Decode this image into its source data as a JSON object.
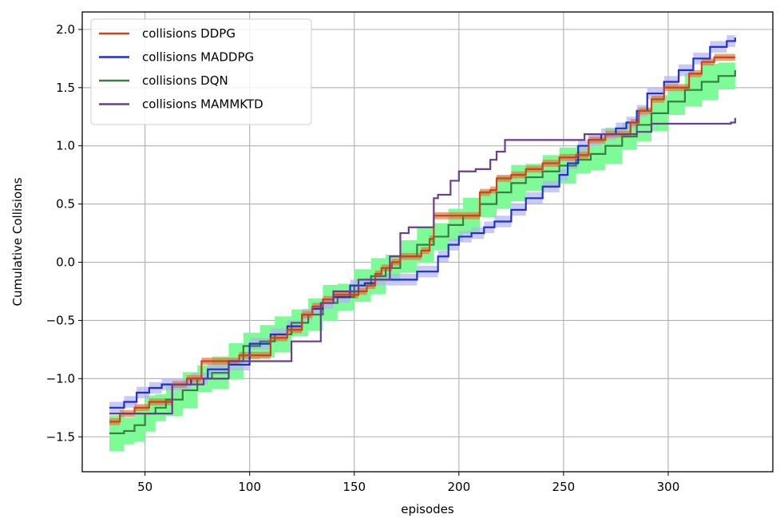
{
  "chart_data": {
    "type": "line",
    "xlabel": "episodes",
    "ylabel": "Cumulative Collisions",
    "xlim": [
      20,
      350
    ],
    "ylim": [
      -1.8,
      2.15
    ],
    "xticks": [
      50,
      100,
      150,
      200,
      250,
      300
    ],
    "yticks": [
      -1.5,
      -1.0,
      -0.5,
      0.0,
      0.5,
      1.0,
      1.5,
      2.0
    ],
    "xtick_labels": [
      "50",
      "100",
      "150",
      "200",
      "250",
      "300"
    ],
    "ytick_labels": [
      "−1.5",
      "−1.0",
      "−0.5",
      "0.0",
      "0.5",
      "1.0",
      "1.5",
      "2.0"
    ],
    "grid": true,
    "legend_position": "top-left",
    "series": [
      {
        "name": "collisions DDPG",
        "color": "#c8461e",
        "band_color": "#e07a3c",
        "band_width": 0.03,
        "points": [
          [
            33,
            -1.37
          ],
          [
            38,
            -1.3
          ],
          [
            45,
            -1.25
          ],
          [
            52,
            -1.2
          ],
          [
            58,
            -1.2
          ],
          [
            63,
            -1.05
          ],
          [
            70,
            -1.0
          ],
          [
            77,
            -0.85
          ],
          [
            85,
            -0.85
          ],
          [
            95,
            -0.8
          ],
          [
            100,
            -0.8
          ],
          [
            110,
            -0.65
          ],
          [
            118,
            -0.58
          ],
          [
            125,
            -0.45
          ],
          [
            130,
            -0.38
          ],
          [
            135,
            -0.32
          ],
          [
            140,
            -0.28
          ],
          [
            148,
            -0.28
          ],
          [
            152,
            -0.25
          ],
          [
            156,
            -0.2
          ],
          [
            160,
            -0.1
          ],
          [
            163,
            -0.05
          ],
          [
            168,
            0.0
          ],
          [
            172,
            0.05
          ],
          [
            176,
            0.05
          ],
          [
            182,
            0.1
          ],
          [
            186,
            0.2
          ],
          [
            188,
            0.4
          ],
          [
            195,
            0.4
          ],
          [
            205,
            0.4
          ],
          [
            210,
            0.6
          ],
          [
            215,
            0.62
          ],
          [
            218,
            0.72
          ],
          [
            225,
            0.75
          ],
          [
            232,
            0.8
          ],
          [
            240,
            0.85
          ],
          [
            248,
            0.9
          ],
          [
            256,
            0.92
          ],
          [
            262,
            1.05
          ],
          [
            270,
            1.1
          ],
          [
            277,
            1.1
          ],
          [
            282,
            1.2
          ],
          [
            286,
            1.3
          ],
          [
            292,
            1.4
          ],
          [
            298,
            1.5
          ],
          [
            305,
            1.5
          ],
          [
            310,
            1.62
          ],
          [
            316,
            1.72
          ],
          [
            322,
            1.76
          ],
          [
            332,
            1.76
          ]
        ]
      },
      {
        "name": "collisions MADDPG",
        "color": "#1f2fd1",
        "band_color": "#b0b4ee",
        "band_width": 0.05,
        "points": [
          [
            33,
            -1.25
          ],
          [
            40,
            -1.2
          ],
          [
            46,
            -1.12
          ],
          [
            52,
            -1.08
          ],
          [
            58,
            -1.05
          ],
          [
            65,
            -1.05
          ],
          [
            72,
            -1.0
          ],
          [
            80,
            -0.92
          ],
          [
            90,
            -0.88
          ],
          [
            100,
            -0.7
          ],
          [
            110,
            -0.62
          ],
          [
            118,
            -0.55
          ],
          [
            125,
            -0.45
          ],
          [
            130,
            -0.4
          ],
          [
            135,
            -0.35
          ],
          [
            140,
            -0.3
          ],
          [
            148,
            -0.2
          ],
          [
            155,
            -0.18
          ],
          [
            160,
            -0.15
          ],
          [
            166,
            -0.15
          ],
          [
            170,
            -0.15
          ],
          [
            180,
            -0.08
          ],
          [
            190,
            0.05
          ],
          [
            195,
            0.15
          ],
          [
            200,
            0.22
          ],
          [
            206,
            0.25
          ],
          [
            212,
            0.3
          ],
          [
            217,
            0.35
          ],
          [
            225,
            0.45
          ],
          [
            232,
            0.55
          ],
          [
            240,
            0.65
          ],
          [
            248,
            0.75
          ],
          [
            252,
            0.85
          ],
          [
            257,
            1.0
          ],
          [
            262,
            1.05
          ],
          [
            268,
            1.1
          ],
          [
            275,
            1.15
          ],
          [
            280,
            1.2
          ],
          [
            285,
            1.3
          ],
          [
            290,
            1.45
          ],
          [
            298,
            1.55
          ],
          [
            305,
            1.65
          ],
          [
            312,
            1.75
          ],
          [
            320,
            1.85
          ],
          [
            328,
            1.9
          ],
          [
            332,
            1.93
          ]
        ]
      },
      {
        "name": "collisions DQN",
        "color": "#3a7d44",
        "band_color": "#7dfb96",
        "band_width": 0.13,
        "points": [
          [
            33,
            -1.47
          ],
          [
            40,
            -1.45
          ],
          [
            45,
            -1.4
          ],
          [
            50,
            -1.3
          ],
          [
            55,
            -1.25
          ],
          [
            60,
            -1.18
          ],
          [
            68,
            -1.1
          ],
          [
            75,
            -1.0
          ],
          [
            82,
            -0.95
          ],
          [
            90,
            -0.85
          ],
          [
            97,
            -0.72
          ],
          [
            105,
            -0.68
          ],
          [
            112,
            -0.62
          ],
          [
            120,
            -0.52
          ],
          [
            128,
            -0.45
          ],
          [
            135,
            -0.35
          ],
          [
            142,
            -0.3
          ],
          [
            150,
            -0.2
          ],
          [
            158,
            -0.12
          ],
          [
            165,
            -0.05
          ],
          [
            172,
            0.05
          ],
          [
            180,
            0.15
          ],
          [
            188,
            0.22
          ],
          [
            195,
            0.32
          ],
          [
            202,
            0.4
          ],
          [
            210,
            0.5
          ],
          [
            218,
            0.6
          ],
          [
            225,
            0.68
          ],
          [
            232,
            0.73
          ],
          [
            240,
            0.78
          ],
          [
            248,
            0.83
          ],
          [
            256,
            0.88
          ],
          [
            263,
            0.93
          ],
          [
            270,
            1.0
          ],
          [
            278,
            1.08
          ],
          [
            285,
            1.18
          ],
          [
            292,
            1.28
          ],
          [
            300,
            1.38
          ],
          [
            308,
            1.48
          ],
          [
            316,
            1.55
          ],
          [
            324,
            1.6
          ],
          [
            332,
            1.65
          ]
        ]
      },
      {
        "name": "collisions MAMMKTD",
        "color": "#6a3d8f",
        "band_color": "#6a3d8f",
        "band_width": 0.0,
        "points": [
          [
            33,
            -1.3
          ],
          [
            63,
            -1.3
          ],
          [
            63,
            -1.05
          ],
          [
            78,
            -1.05
          ],
          [
            78,
            -1.0
          ],
          [
            90,
            -1.0
          ],
          [
            90,
            -0.85
          ],
          [
            120,
            -0.85
          ],
          [
            120,
            -0.68
          ],
          [
            134,
            -0.68
          ],
          [
            134,
            -0.35
          ],
          [
            140,
            -0.35
          ],
          [
            140,
            -0.25
          ],
          [
            152,
            -0.25
          ],
          [
            152,
            -0.15
          ],
          [
            167,
            -0.15
          ],
          [
            167,
            0.05
          ],
          [
            172,
            0.05
          ],
          [
            172,
            0.25
          ],
          [
            176,
            0.25
          ],
          [
            176,
            0.3
          ],
          [
            188,
            0.3
          ],
          [
            188,
            0.55
          ],
          [
            190,
            0.55
          ],
          [
            190,
            0.58
          ],
          [
            196,
            0.58
          ],
          [
            196,
            0.7
          ],
          [
            200,
            0.7
          ],
          [
            200,
            0.78
          ],
          [
            208,
            0.78
          ],
          [
            208,
            0.8
          ],
          [
            215,
            0.8
          ],
          [
            215,
            0.88
          ],
          [
            218,
            0.88
          ],
          [
            218,
            0.95
          ],
          [
            222,
            0.95
          ],
          [
            222,
            1.05
          ],
          [
            260,
            1.05
          ],
          [
            260,
            1.1
          ],
          [
            285,
            1.1
          ],
          [
            285,
            1.12
          ],
          [
            292,
            1.12
          ],
          [
            292,
            1.19
          ],
          [
            325,
            1.19
          ],
          [
            330,
            1.2
          ],
          [
            332,
            1.24
          ]
        ]
      }
    ]
  }
}
